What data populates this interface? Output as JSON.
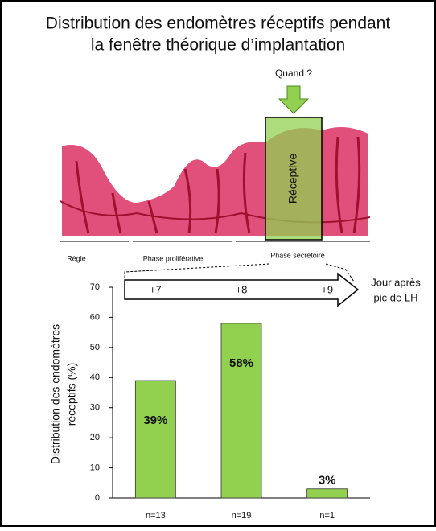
{
  "chart_data": {
    "type": "bar",
    "title": [
      "Distribution des endomètres réceptifs pendant",
      "la fenêtre théorique d’implantation"
    ],
    "ylabel": [
      "Distribution des endomètres",
      "réceptifs (%)"
    ],
    "categories": [
      "n=13",
      "n=19",
      "n=1"
    ],
    "values": [
      39,
      58,
      3
    ],
    "value_labels": [
      "39%",
      "58%",
      "3%"
    ],
    "color": "#92d050",
    "ylim": [
      0,
      70
    ],
    "yticks": [
      0,
      10,
      20,
      30,
      40,
      50,
      60,
      70
    ],
    "day_labels": [
      "+7",
      "+8",
      "+9"
    ],
    "day_axis_label": [
      "Jour après",
      "pic de LH"
    ]
  },
  "illustration": {
    "arrow_label": "Quand ?",
    "window_label": "Réceptive",
    "phases": [
      "Règle",
      "Phase proliférative",
      "Phase sécrétoire"
    ]
  }
}
